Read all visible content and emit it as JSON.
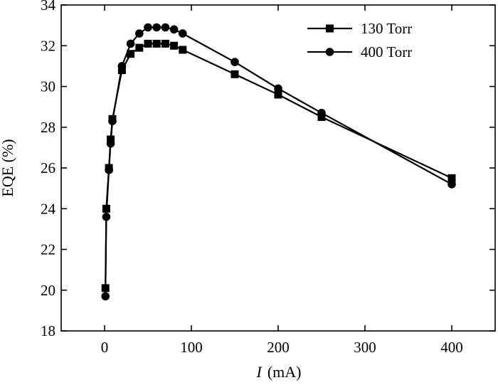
{
  "chart_data": {
    "type": "line",
    "xlabel_var": "I",
    "xlabel_unit": "(mA)",
    "ylabel": "EQE (%)",
    "xlim": [
      -50,
      450
    ],
    "ylim": [
      18,
      34
    ],
    "xticks": [
      0,
      100,
      200,
      300,
      400
    ],
    "yticks": [
      18,
      20,
      22,
      24,
      26,
      28,
      30,
      32,
      34
    ],
    "grid": false,
    "legend_position": "top-right",
    "series": [
      {
        "name": "130 Torr",
        "marker": "square",
        "x": [
          1,
          2,
          5,
          7,
          9,
          20,
          30,
          40,
          50,
          60,
          70,
          80,
          90,
          150,
          200,
          250,
          400
        ],
        "y": [
          20.1,
          24.0,
          26.0,
          27.4,
          28.4,
          30.8,
          31.6,
          31.9,
          32.1,
          32.1,
          32.1,
          32.0,
          31.8,
          30.6,
          29.6,
          28.5,
          25.5
        ]
      },
      {
        "name": "400 Torr",
        "marker": "circle",
        "x": [
          1,
          2,
          5,
          7,
          9,
          20,
          30,
          40,
          50,
          60,
          70,
          80,
          90,
          150,
          200,
          250,
          400
        ],
        "y": [
          19.7,
          23.6,
          25.9,
          27.2,
          28.3,
          31.0,
          32.1,
          32.6,
          32.9,
          32.9,
          32.9,
          32.8,
          32.6,
          31.2,
          29.9,
          28.7,
          25.2
        ]
      }
    ]
  }
}
